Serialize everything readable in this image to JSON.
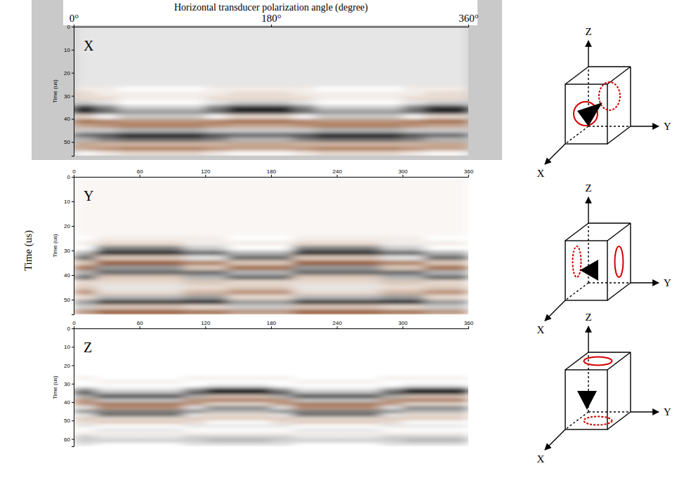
{
  "figure": {
    "ylabel": "Time (us)"
  },
  "chart_data": [
    {
      "type": "heatmap",
      "title": "Horizontal transducer polarization angle (degree)",
      "label": "X",
      "ylabel": "Time (us)",
      "xlim": [
        0,
        360
      ],
      "ylim": [
        0,
        56
      ],
      "xticks": [
        {
          "value": 0,
          "label": "0°"
        },
        {
          "value": 180,
          "label": "180°"
        },
        {
          "value": 360,
          "label": "360°"
        }
      ],
      "yticks": [
        0,
        10,
        20,
        30,
        40,
        50
      ],
      "zlim": [
        -1,
        1
      ],
      "x_edges": [
        0,
        20,
        40,
        60,
        80,
        100,
        120,
        140,
        160,
        180,
        200,
        220,
        240,
        260,
        280,
        300,
        320,
        340,
        360
      ],
      "y_edges": [
        0,
        26,
        28,
        30,
        32,
        34,
        36,
        38,
        40,
        42,
        44,
        46,
        48,
        50,
        52,
        54,
        56
      ],
      "traces": [
        [
          0.1,
          -0.1,
          -0.2,
          -0.2,
          0.2,
          0.8,
          0.9,
          -0.2,
          -0.8,
          -0.5,
          0.2,
          0.6,
          0.3,
          -0.5,
          -0.5,
          0.0
        ],
        [
          0.1,
          -0.1,
          -0.1,
          -0.2,
          0.1,
          0.5,
          0.6,
          0.0,
          -0.7,
          -0.6,
          0.2,
          0.7,
          0.5,
          -0.4,
          -0.6,
          -0.1
        ],
        [
          0.1,
          0.0,
          -0.1,
          -0.1,
          0.0,
          0.2,
          0.4,
          0.2,
          -0.6,
          -0.7,
          0.3,
          0.9,
          0.6,
          -0.4,
          -0.7,
          -0.2
        ],
        [
          0.1,
          0.0,
          -0.1,
          -0.1,
          0.0,
          0.2,
          0.4,
          0.2,
          -0.6,
          -0.7,
          0.3,
          0.9,
          0.6,
          -0.4,
          -0.7,
          -0.2
        ],
        [
          0.1,
          0.0,
          -0.1,
          -0.1,
          0.0,
          0.2,
          0.4,
          0.2,
          -0.6,
          -0.7,
          0.3,
          0.9,
          0.6,
          -0.4,
          -0.7,
          -0.2
        ],
        [
          0.1,
          0.0,
          -0.1,
          -0.1,
          0.0,
          0.2,
          0.4,
          0.2,
          -0.6,
          -0.7,
          0.3,
          0.9,
          0.6,
          -0.4,
          -0.7,
          -0.2
        ],
        [
          0.1,
          -0.1,
          -0.1,
          -0.2,
          0.1,
          0.5,
          0.6,
          0.0,
          -0.7,
          -0.6,
          0.2,
          0.7,
          0.5,
          -0.4,
          -0.6,
          -0.1
        ],
        [
          0.1,
          -0.1,
          -0.2,
          -0.2,
          0.2,
          0.8,
          0.9,
          -0.2,
          -0.8,
          -0.5,
          0.2,
          0.6,
          0.3,
          -0.5,
          -0.5,
          0.0
        ],
        [
          0.1,
          -0.1,
          -0.2,
          -0.2,
          0.2,
          0.8,
          0.9,
          -0.2,
          -0.8,
          -0.5,
          0.2,
          0.6,
          0.3,
          -0.5,
          -0.5,
          0.0
        ],
        [
          0.1,
          -0.1,
          -0.2,
          -0.2,
          0.2,
          0.8,
          0.9,
          -0.2,
          -0.8,
          -0.5,
          0.2,
          0.6,
          0.3,
          -0.5,
          -0.5,
          0.0
        ],
        [
          0.1,
          -0.1,
          -0.1,
          -0.2,
          0.1,
          0.5,
          0.6,
          0.0,
          -0.7,
          -0.6,
          0.2,
          0.7,
          0.5,
          -0.4,
          -0.6,
          -0.1
        ],
        [
          0.1,
          0.0,
          -0.1,
          -0.1,
          0.0,
          0.2,
          0.4,
          0.2,
          -0.6,
          -0.7,
          0.3,
          0.9,
          0.6,
          -0.4,
          -0.7,
          -0.2
        ],
        [
          0.1,
          0.0,
          -0.1,
          -0.1,
          0.0,
          0.2,
          0.4,
          0.2,
          -0.6,
          -0.7,
          0.3,
          0.9,
          0.6,
          -0.4,
          -0.7,
          -0.2
        ],
        [
          0.1,
          0.0,
          -0.1,
          -0.1,
          0.0,
          0.2,
          0.4,
          0.2,
          -0.6,
          -0.7,
          0.3,
          0.9,
          0.6,
          -0.4,
          -0.7,
          -0.2
        ],
        [
          0.1,
          0.0,
          -0.1,
          -0.1,
          0.0,
          0.2,
          0.4,
          0.2,
          -0.6,
          -0.7,
          0.3,
          0.9,
          0.6,
          -0.4,
          -0.7,
          -0.2
        ],
        [
          0.1,
          -0.1,
          -0.1,
          -0.2,
          0.1,
          0.5,
          0.6,
          0.0,
          -0.7,
          -0.6,
          0.2,
          0.7,
          0.5,
          -0.4,
          -0.6,
          -0.1
        ],
        [
          0.1,
          -0.1,
          -0.2,
          -0.2,
          0.2,
          0.8,
          0.9,
          -0.2,
          -0.8,
          -0.5,
          0.2,
          0.6,
          0.3,
          -0.5,
          -0.5,
          0.0
        ],
        [
          0.1,
          -0.1,
          -0.2,
          -0.2,
          0.2,
          0.8,
          0.9,
          -0.2,
          -0.8,
          -0.5,
          0.2,
          0.6,
          0.3,
          -0.5,
          -0.5,
          0.0
        ]
      ]
    },
    {
      "type": "heatmap",
      "label": "Y",
      "ylabel": "Time (us)",
      "xlim": [
        0,
        360
      ],
      "ylim": [
        0,
        56
      ],
      "xticks": [
        0,
        60,
        120,
        180,
        240,
        300,
        360
      ],
      "yticks": [
        0,
        10,
        20,
        30,
        40,
        50
      ],
      "zlim": [
        -1,
        1
      ],
      "x_edges": [
        0,
        20,
        40,
        60,
        80,
        100,
        120,
        140,
        160,
        180,
        200,
        220,
        240,
        260,
        280,
        300,
        320,
        340,
        360
      ],
      "y_edges": [
        0,
        24,
        26,
        28,
        30,
        32,
        34,
        36,
        38,
        40,
        42,
        44,
        46,
        48,
        50,
        52,
        54,
        56
      ],
      "traces": [
        [
          -0.05,
          0.0,
          -0.1,
          0.0,
          0.3,
          0.6,
          -0.3,
          -0.8,
          0.3,
          0.6,
          -0.2,
          -0.3,
          -0.6,
          -0.2,
          0.4,
          0.2,
          -0.6
        ],
        [
          -0.05,
          -0.1,
          -0.2,
          0.5,
          0.9,
          -0.3,
          -0.9,
          0.4,
          0.6,
          -0.3,
          -0.2,
          0.1,
          -0.2,
          0.3,
          0.8,
          -0.3,
          -0.9
        ],
        [
          -0.05,
          -0.1,
          -0.2,
          0.5,
          0.9,
          -0.3,
          -0.9,
          0.4,
          0.6,
          -0.3,
          -0.2,
          0.1,
          -0.2,
          0.3,
          0.8,
          -0.3,
          -0.9
        ],
        [
          -0.05,
          -0.1,
          -0.2,
          0.5,
          0.9,
          -0.3,
          -0.9,
          0.4,
          0.6,
          -0.3,
          -0.2,
          0.1,
          -0.2,
          0.3,
          0.8,
          -0.3,
          -0.9
        ],
        [
          -0.05,
          -0.1,
          -0.2,
          0.5,
          0.9,
          -0.3,
          -0.9,
          0.4,
          0.6,
          -0.3,
          -0.2,
          0.1,
          -0.2,
          0.3,
          0.8,
          -0.3,
          -0.9
        ],
        [
          -0.05,
          -0.1,
          -0.1,
          0.2,
          0.6,
          0.1,
          -0.7,
          -0.3,
          0.6,
          0.3,
          -0.3,
          -0.2,
          -0.4,
          0.4,
          0.9,
          -0.2,
          -0.8
        ],
        [
          -0.05,
          -0.1,
          -0.1,
          0.2,
          0.6,
          0.1,
          -0.7,
          -0.3,
          0.6,
          0.3,
          -0.3,
          -0.2,
          -0.4,
          0.4,
          0.9,
          -0.2,
          -0.8
        ],
        [
          -0.05,
          0.0,
          -0.1,
          0.0,
          0.3,
          0.6,
          -0.3,
          -0.8,
          0.3,
          0.6,
          -0.2,
          -0.3,
          -0.6,
          -0.2,
          0.4,
          0.2,
          -0.6
        ],
        [
          -0.05,
          0.0,
          -0.1,
          0.0,
          0.3,
          0.6,
          -0.3,
          -0.8,
          0.3,
          0.6,
          -0.2,
          -0.3,
          -0.6,
          -0.2,
          0.4,
          0.2,
          -0.6
        ],
        [
          -0.05,
          0.0,
          -0.1,
          0.0,
          0.3,
          0.6,
          -0.3,
          -0.8,
          0.3,
          0.6,
          -0.2,
          -0.3,
          -0.6,
          -0.2,
          0.4,
          0.2,
          -0.6
        ],
        [
          -0.05,
          -0.1,
          -0.2,
          0.5,
          0.9,
          -0.3,
          -0.9,
          0.4,
          0.6,
          -0.3,
          -0.2,
          0.1,
          -0.2,
          0.3,
          0.8,
          -0.3,
          -0.9
        ],
        [
          -0.05,
          -0.1,
          -0.2,
          0.5,
          0.9,
          -0.3,
          -0.9,
          0.4,
          0.6,
          -0.3,
          -0.2,
          0.1,
          -0.2,
          0.3,
          0.8,
          -0.3,
          -0.9
        ],
        [
          -0.05,
          -0.1,
          -0.2,
          0.5,
          0.9,
          -0.3,
          -0.9,
          0.4,
          0.6,
          -0.3,
          -0.2,
          0.1,
          -0.2,
          0.3,
          0.8,
          -0.3,
          -0.9
        ],
        [
          -0.05,
          -0.1,
          -0.2,
          0.5,
          0.9,
          -0.3,
          -0.9,
          0.4,
          0.6,
          -0.3,
          -0.2,
          0.1,
          -0.2,
          0.3,
          0.8,
          -0.3,
          -0.9
        ],
        [
          -0.05,
          -0.1,
          -0.1,
          0.2,
          0.6,
          0.1,
          -0.7,
          -0.3,
          0.6,
          0.3,
          -0.3,
          -0.2,
          -0.4,
          0.4,
          0.9,
          -0.2,
          -0.8
        ],
        [
          -0.05,
          -0.1,
          -0.1,
          0.2,
          0.6,
          0.1,
          -0.7,
          -0.3,
          0.6,
          0.3,
          -0.3,
          -0.2,
          -0.4,
          0.4,
          0.9,
          -0.2,
          -0.8
        ],
        [
          -0.05,
          0.0,
          -0.1,
          0.0,
          0.3,
          0.6,
          -0.3,
          -0.8,
          0.3,
          0.6,
          -0.2,
          -0.3,
          -0.6,
          -0.2,
          0.4,
          0.2,
          -0.6
        ],
        [
          -0.05,
          0.0,
          -0.1,
          0.0,
          0.3,
          0.6,
          -0.3,
          -0.8,
          0.3,
          0.6,
          -0.2,
          -0.3,
          -0.6,
          -0.2,
          0.4,
          0.2,
          -0.6
        ]
      ]
    },
    {
      "type": "heatmap",
      "label": "Z",
      "ylabel": "Time (us)",
      "xlim": [
        0,
        360
      ],
      "ylim": [
        0,
        64
      ],
      "xticks": [
        0,
        60,
        120,
        180,
        240,
        300,
        360
      ],
      "yticks": [
        0,
        10,
        20,
        30,
        40,
        50,
        60
      ],
      "zlim": [
        -1,
        1
      ],
      "x_edges": [
        0,
        20,
        40,
        60,
        80,
        100,
        120,
        140,
        160,
        180,
        200,
        220,
        240,
        260,
        280,
        300,
        320,
        340,
        360
      ],
      "y_edges": [
        0,
        26,
        28,
        30,
        32,
        34,
        36,
        38,
        40,
        42,
        44,
        46,
        48,
        50,
        52,
        54,
        56,
        58,
        60,
        62,
        64
      ],
      "traces": [
        [
          0,
          -0.1,
          0.0,
          0.0,
          0.4,
          0.7,
          0.3,
          -0.6,
          -0.6,
          0.1,
          0.5,
          0.1,
          -0.3,
          -0.2,
          0.1,
          0.0,
          -0.1,
          0.2,
          0.2,
          0.1
        ],
        [
          0,
          0.0,
          -0.1,
          0.0,
          0.1,
          0.3,
          0.8,
          0.2,
          -0.8,
          -0.6,
          0.5,
          0.6,
          -0.2,
          -0.3,
          0.0,
          0.1,
          -0.1,
          0.1,
          0.2,
          0.0
        ],
        [
          0,
          0.0,
          -0.1,
          0.0,
          0.1,
          0.3,
          0.8,
          0.2,
          -0.8,
          -0.6,
          0.5,
          0.6,
          -0.2,
          -0.3,
          0.0,
          0.1,
          -0.1,
          0.1,
          0.2,
          0.0
        ],
        [
          0,
          0.0,
          -0.1,
          0.0,
          0.1,
          0.3,
          0.8,
          0.2,
          -0.8,
          -0.6,
          0.5,
          0.6,
          -0.2,
          -0.3,
          0.0,
          0.1,
          -0.1,
          0.1,
          0.2,
          0.0
        ],
        [
          0,
          0.0,
          -0.1,
          0.0,
          0.1,
          0.3,
          0.8,
          0.2,
          -0.8,
          -0.6,
          0.5,
          0.6,
          -0.2,
          -0.3,
          0.0,
          0.1,
          -0.1,
          0.1,
          0.2,
          0.0
        ],
        [
          0,
          -0.1,
          0.0,
          0.0,
          0.4,
          0.7,
          0.3,
          -0.6,
          -0.6,
          0.1,
          0.5,
          0.1,
          -0.3,
          -0.2,
          0.1,
          0.0,
          -0.1,
          0.2,
          0.2,
          0.1
        ],
        [
          0,
          -0.1,
          0.0,
          0.1,
          0.8,
          0.9,
          -0.3,
          -0.8,
          -0.2,
          0.5,
          0.3,
          -0.2,
          -0.3,
          0.0,
          0.1,
          0.0,
          -0.1,
          0.2,
          0.3,
          0.1
        ],
        [
          0,
          -0.1,
          0.0,
          0.1,
          0.8,
          0.9,
          -0.3,
          -0.8,
          -0.2,
          0.5,
          0.3,
          -0.2,
          -0.3,
          0.0,
          0.1,
          0.0,
          -0.1,
          0.2,
          0.3,
          0.1
        ],
        [
          0,
          -0.1,
          0.0,
          0.1,
          0.8,
          0.9,
          -0.3,
          -0.8,
          -0.2,
          0.5,
          0.3,
          -0.2,
          -0.3,
          0.0,
          0.1,
          0.0,
          -0.1,
          0.2,
          0.3,
          0.1
        ],
        [
          0,
          -0.1,
          0.0,
          0.0,
          0.4,
          0.7,
          0.3,
          -0.6,
          -0.6,
          0.1,
          0.5,
          0.1,
          -0.3,
          -0.2,
          0.1,
          0.0,
          -0.1,
          0.2,
          0.2,
          0.1
        ],
        [
          0,
          0.0,
          -0.1,
          0.0,
          0.1,
          0.3,
          0.8,
          0.2,
          -0.8,
          -0.6,
          0.5,
          0.6,
          -0.2,
          -0.3,
          0.0,
          0.1,
          -0.1,
          0.1,
          0.2,
          0.0
        ],
        [
          0,
          0.0,
          -0.1,
          0.0,
          0.1,
          0.3,
          0.8,
          0.2,
          -0.8,
          -0.6,
          0.5,
          0.6,
          -0.2,
          -0.3,
          0.0,
          0.1,
          -0.1,
          0.1,
          0.2,
          0.0
        ],
        [
          0,
          0.0,
          -0.1,
          0.0,
          0.1,
          0.3,
          0.8,
          0.2,
          -0.8,
          -0.6,
          0.5,
          0.6,
          -0.2,
          -0.3,
          0.0,
          0.1,
          -0.1,
          0.1,
          0.2,
          0.0
        ],
        [
          0,
          0.0,
          -0.1,
          0.0,
          0.1,
          0.3,
          0.8,
          0.2,
          -0.8,
          -0.6,
          0.5,
          0.6,
          -0.2,
          -0.3,
          0.0,
          0.1,
          -0.1,
          0.1,
          0.2,
          0.0
        ],
        [
          0,
          -0.1,
          0.0,
          0.0,
          0.4,
          0.7,
          0.3,
          -0.6,
          -0.6,
          0.1,
          0.5,
          0.1,
          -0.3,
          -0.2,
          0.1,
          0.0,
          -0.1,
          0.2,
          0.2,
          0.1
        ],
        [
          0,
          -0.1,
          0.0,
          0.1,
          0.8,
          0.9,
          -0.3,
          -0.8,
          -0.2,
          0.5,
          0.3,
          -0.2,
          -0.3,
          0.0,
          0.1,
          0.0,
          -0.1,
          0.2,
          0.3,
          0.1
        ],
        [
          0,
          -0.1,
          0.0,
          0.1,
          0.8,
          0.9,
          -0.3,
          -0.8,
          -0.2,
          0.5,
          0.3,
          -0.2,
          -0.3,
          0.0,
          0.1,
          0.0,
          -0.1,
          0.2,
          0.3,
          0.1
        ],
        [
          0,
          -0.1,
          0.0,
          0.1,
          0.8,
          0.9,
          -0.3,
          -0.8,
          -0.2,
          0.5,
          0.3,
          -0.2,
          -0.3,
          0.0,
          0.1,
          0.0,
          -0.1,
          0.2,
          0.3,
          0.1
        ]
      ]
    }
  ],
  "diagrams": [
    {
      "axes": {
        "x": "X",
        "y": "Y",
        "z": "Z"
      }
    },
    {
      "axes": {
        "x": "X",
        "y": "Y",
        "z": "Z"
      }
    },
    {
      "axes": {
        "x": "X",
        "y": "Y",
        "z": "Z"
      }
    }
  ]
}
